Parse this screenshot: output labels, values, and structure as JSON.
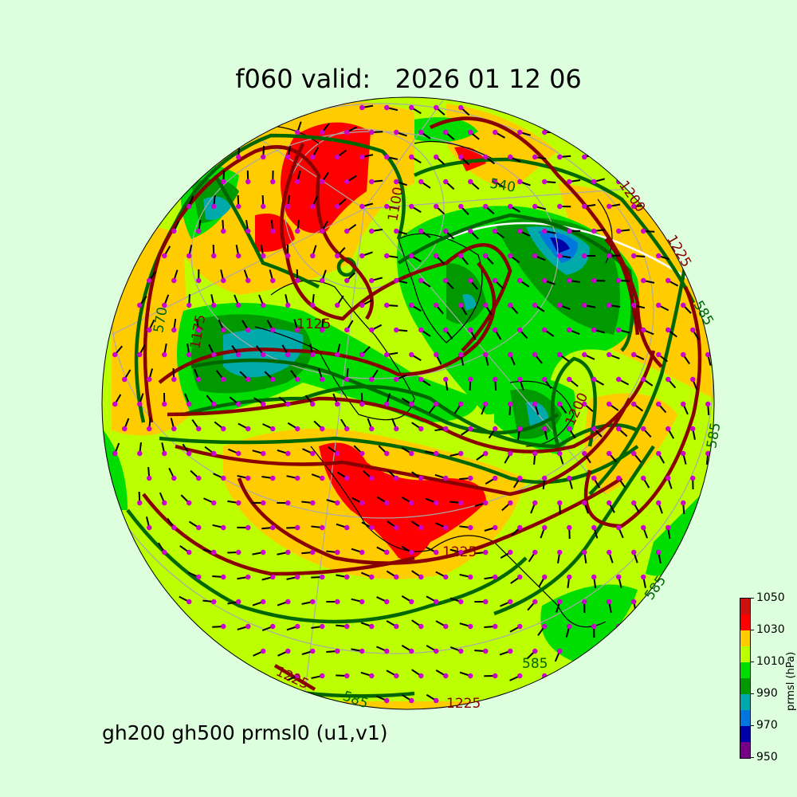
{
  "title": "f060 valid:   2026 01 12 06",
  "subtitle": "gh200 gh500 prmsl0 (u1,v1)",
  "colorbar": {
    "label": "prmsl (hPa)",
    "ticks": [
      "950",
      "970",
      "990",
      "1010",
      "1030",
      "1050"
    ],
    "levels": [
      950,
      960,
      970,
      980,
      990,
      1000,
      1010,
      1020,
      1030,
      1040,
      1050
    ],
    "colors": [
      "#770088",
      "#0000aa",
      "#0077dd",
      "#00aaaa",
      "#009900",
      "#00dd00",
      "#bbff00",
      "#ffcc00",
      "#ff0000",
      "#cc1111"
    ]
  },
  "contour_colors": {
    "gh200": "#880000",
    "gh500": "#006600",
    "wind_dots": "#cc00cc"
  },
  "contour_labels": {
    "l1100": "1100",
    "l1125": "1125",
    "l1175": "1175",
    "l1200a": "1200",
    "l1200b": "1200",
    "l1225a": "1225",
    "l1225b": "1225",
    "l1225c": "1225",
    "l1225d": "1225",
    "l540": "540",
    "l570": "570",
    "l585a": "585",
    "l585b": "585",
    "l585c": "585",
    "l585d": "585",
    "l585e": "585"
  }
}
